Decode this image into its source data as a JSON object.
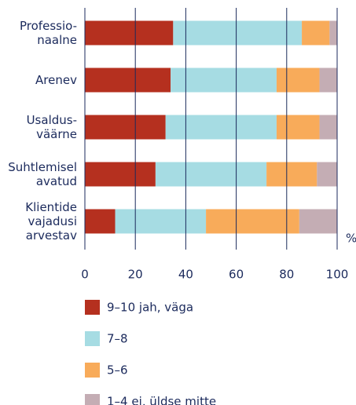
{
  "chart_data": {
    "type": "stacked-barh",
    "categories": [
      [
        "Professio-",
        "naalne"
      ],
      [
        "Arenev"
      ],
      [
        "Usaldus-",
        "väärne"
      ],
      [
        "Suhtlemisel",
        "avatud"
      ],
      [
        "Klientide",
        "vajadusi",
        "arvestav"
      ]
    ],
    "series": [
      {
        "name": "9–10 jah, väga",
        "color": "#b5301f",
        "values": [
          35,
          34,
          32,
          28,
          12
        ]
      },
      {
        "name": "7–8",
        "color": "#a6dce3",
        "values": [
          51,
          42,
          44,
          44,
          36
        ]
      },
      {
        "name": "5–6",
        "color": "#f8ab5a",
        "values": [
          11,
          17,
          17,
          20,
          37
        ]
      },
      {
        "name": "1–4 ei, üldse mitte",
        "color": "#c4adb4",
        "values": [
          3,
          7,
          7,
          8,
          15
        ]
      }
    ],
    "xlim": [
      0,
      100
    ],
    "xticks": [
      0,
      20,
      40,
      60,
      80,
      100
    ],
    "xlabel": "%",
    "grid": true
  }
}
